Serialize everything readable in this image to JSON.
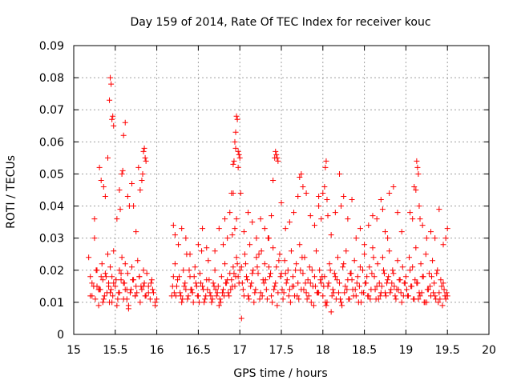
{
  "chart_data": {
    "type": "scatter",
    "title": "Day 159 of 2014, Rate Of TEC Index for receiver kouc",
    "xlabel": "GPS time / hours",
    "ylabel": "ROTI / TECUs",
    "xlim": [
      15,
      20
    ],
    "ylim": [
      0,
      0.09
    ],
    "x_ticks": [
      15,
      15.5,
      16,
      16.5,
      17,
      17.5,
      18,
      18.5,
      19,
      19.5,
      20
    ],
    "x_tick_labels": [
      "15",
      "15.5",
      "16",
      "16.5",
      "17",
      "17.5",
      "18",
      "18.5",
      "19",
      "19.5",
      "20"
    ],
    "y_ticks": [
      0,
      0.01,
      0.02,
      0.03,
      0.04,
      0.05,
      0.06,
      0.07,
      0.08,
      0.09
    ],
    "y_tick_labels": [
      "0",
      "0.01",
      "0.02",
      "0.03",
      "0.04",
      "0.05",
      "0.06",
      "0.07",
      "0.08",
      "0.09"
    ],
    "grid": true,
    "marker": "+",
    "marker_color": "#ff0000",
    "series": [
      {
        "name": "ROTI",
        "x": [
          15.18,
          15.2,
          15.22,
          15.25,
          15.27,
          15.28,
          15.3,
          15.32,
          15.34,
          15.35,
          15.36,
          15.38,
          15.4,
          15.41,
          15.42,
          15.43,
          15.44,
          15.45,
          15.46,
          15.47,
          15.48,
          15.5,
          15.52,
          15.54,
          15.55,
          15.57,
          15.58,
          15.6,
          15.61,
          15.62,
          15.64,
          15.65,
          15.66,
          15.68,
          15.7,
          15.72,
          15.74,
          15.75,
          15.77,
          15.79,
          15.8,
          15.82,
          15.84,
          15.85,
          15.86,
          15.88,
          15.9,
          15.92,
          15.94,
          15.96,
          15.98,
          16.0,
          15.2,
          15.24,
          15.28,
          15.31,
          15.35,
          15.39,
          15.44,
          15.48,
          15.53,
          15.57,
          15.62,
          15.66,
          15.71,
          15.76,
          15.81,
          15.87,
          15.93,
          15.98,
          15.22,
          15.26,
          15.3,
          15.33,
          15.37,
          15.42,
          15.46,
          15.51,
          15.55,
          15.6,
          15.64,
          15.69,
          15.74,
          15.79,
          15.84,
          15.9,
          15.95,
          15.25,
          15.31,
          15.33,
          15.36,
          15.38,
          15.41,
          15.43,
          15.44,
          15.45,
          15.46,
          15.47,
          15.48,
          15.52,
          15.55,
          15.56,
          15.58,
          15.59,
          15.6,
          15.62,
          15.65,
          15.67,
          15.7,
          15.72,
          15.75,
          15.78,
          15.8,
          15.82,
          15.83,
          15.84,
          15.85,
          15.86,
          15.87,
          16.18,
          16.2,
          16.22,
          16.24,
          16.26,
          16.28,
          16.3,
          16.32,
          16.34,
          16.36,
          16.38,
          16.4,
          16.42,
          16.44,
          16.46,
          16.48,
          16.5,
          16.52,
          16.54,
          16.56,
          16.58,
          16.6,
          16.62,
          16.64,
          16.66,
          16.68,
          16.7,
          16.72,
          16.74,
          16.76,
          16.78,
          16.8,
          16.82,
          16.84,
          16.86,
          16.88,
          16.9,
          16.92,
          16.94,
          16.96,
          16.98,
          17.0,
          16.19,
          16.23,
          16.27,
          16.31,
          16.35,
          16.39,
          16.43,
          16.47,
          16.51,
          16.55,
          16.59,
          16.63,
          16.67,
          16.71,
          16.75,
          16.79,
          16.83,
          16.87,
          16.91,
          16.95,
          16.99,
          16.21,
          16.25,
          16.29,
          16.33,
          16.37,
          16.41,
          16.45,
          16.49,
          16.53,
          16.57,
          16.61,
          16.65,
          16.69,
          16.73,
          16.77,
          16.81,
          16.85,
          16.89,
          16.93,
          16.97,
          16.2,
          16.22,
          16.3,
          16.35,
          16.4,
          16.5,
          16.55,
          16.6,
          16.7,
          16.75,
          16.8,
          16.82,
          16.85,
          16.88,
          16.9,
          16.92,
          16.93,
          16.94,
          16.95,
          16.96,
          16.97,
          16.98,
          16.99,
          17.0,
          17.01,
          17.02,
          16.92,
          16.95,
          16.98,
          16.96,
          16.94,
          16.91,
          17.02,
          17.04,
          17.06,
          17.08,
          17.1,
          17.12,
          17.14,
          17.16,
          17.18,
          17.2,
          17.22,
          17.24,
          17.26,
          17.28,
          17.3,
          17.32,
          17.34,
          17.36,
          17.38,
          17.4,
          17.42,
          17.44,
          17.46,
          17.48,
          17.5,
          17.52,
          17.54,
          17.56,
          17.58,
          17.6,
          17.62,
          17.64,
          17.66,
          17.68,
          17.7,
          17.72,
          17.74,
          17.76,
          17.78,
          17.8,
          17.82,
          17.84,
          17.86,
          17.88,
          17.9,
          17.92,
          17.94,
          17.96,
          17.98,
          17.03,
          17.07,
          17.11,
          17.15,
          17.19,
          17.23,
          17.27,
          17.31,
          17.35,
          17.39,
          17.43,
          17.47,
          17.51,
          17.55,
          17.59,
          17.63,
          17.67,
          17.71,
          17.75,
          17.79,
          17.83,
          17.87,
          17.91,
          17.95,
          17.99,
          17.05,
          17.09,
          17.13,
          17.17,
          17.21,
          17.25,
          17.29,
          17.33,
          17.37,
          17.41,
          17.45,
          17.49,
          17.53,
          17.57,
          17.61,
          17.65,
          17.69,
          17.73,
          17.77,
          17.81,
          17.85,
          17.89,
          17.93,
          17.97,
          17.05,
          17.1,
          17.15,
          17.2,
          17.25,
          17.3,
          17.35,
          17.38,
          17.4,
          17.42,
          17.43,
          17.44,
          17.45,
          17.46,
          17.5,
          17.55,
          17.6,
          17.65,
          17.7,
          17.72,
          17.74,
          17.76,
          17.8,
          17.85,
          17.9,
          17.95,
          18.0,
          18.02,
          18.04,
          18.06,
          18.08,
          18.1,
          18.12,
          18.14,
          18.16,
          18.18,
          18.2,
          18.22,
          18.24,
          18.26,
          18.28,
          18.3,
          18.32,
          18.34,
          18.36,
          18.38,
          18.4,
          18.42,
          18.44,
          18.46,
          18.48,
          18.5,
          18.52,
          18.54,
          18.56,
          18.58,
          18.6,
          18.62,
          18.64,
          18.66,
          18.68,
          18.7,
          18.72,
          18.74,
          18.76,
          18.78,
          18.8,
          18.82,
          18.84,
          18.86,
          18.88,
          18.9,
          18.92,
          18.94,
          18.96,
          18.98,
          18.01,
          18.05,
          18.09,
          18.13,
          18.17,
          18.21,
          18.25,
          18.29,
          18.33,
          18.37,
          18.41,
          18.45,
          18.49,
          18.53,
          18.57,
          18.61,
          18.65,
          18.69,
          18.73,
          18.77,
          18.81,
          18.85,
          18.89,
          18.93,
          18.97,
          18.03,
          18.07,
          18.11,
          18.15,
          18.19,
          18.23,
          18.27,
          18.31,
          18.35,
          18.39,
          18.43,
          18.47,
          18.51,
          18.55,
          18.59,
          18.63,
          18.67,
          18.71,
          18.75,
          18.79,
          18.83,
          18.87,
          18.91,
          18.95,
          18.99,
          17.95,
          17.98,
          18.0,
          18.02,
          18.03,
          18.04,
          18.05,
          18.06,
          18.1,
          18.15,
          18.2,
          18.22,
          18.25,
          18.3,
          18.35,
          18.4,
          18.45,
          18.5,
          18.55,
          18.6,
          18.65,
          18.7,
          18.72,
          18.75,
          18.78,
          18.8,
          18.85,
          18.9,
          18.95,
          19.0,
          19.02,
          19.04,
          19.06,
          19.08,
          19.1,
          19.12,
          19.14,
          19.16,
          19.18,
          19.2,
          19.22,
          19.24,
          19.26,
          19.28,
          19.3,
          19.32,
          19.34,
          19.36,
          19.38,
          19.4,
          19.42,
          19.44,
          19.46,
          19.48,
          19.5,
          19.01,
          19.05,
          19.09,
          19.13,
          19.17,
          19.21,
          19.25,
          19.29,
          19.33,
          19.37,
          19.41,
          19.45,
          19.49,
          19.03,
          19.07,
          19.11,
          19.15,
          19.19,
          19.23,
          19.27,
          19.31,
          19.35,
          19.39,
          19.43,
          19.47,
          19.05,
          19.08,
          19.1,
          19.12,
          19.13,
          19.14,
          19.15,
          19.16,
          19.17,
          19.2,
          19.25,
          19.3,
          19.35,
          19.4,
          19.45,
          19.48,
          19.5
        ],
        "y": [
          0.024,
          0.018,
          0.012,
          0.036,
          0.02,
          0.015,
          0.009,
          0.014,
          0.022,
          0.017,
          0.011,
          0.019,
          0.013,
          0.025,
          0.016,
          0.01,
          0.021,
          0.014,
          0.018,
          0.012,
          0.026,
          0.015,
          0.009,
          0.013,
          0.02,
          0.017,
          0.024,
          0.011,
          0.016,
          0.022,
          0.014,
          0.019,
          0.008,
          0.013,
          0.021,
          0.017,
          0.012,
          0.015,
          0.023,
          0.018,
          0.01,
          0.014,
          0.02,
          0.016,
          0.012,
          0.019,
          0.015,
          0.011,
          0.017,
          0.013,
          0.009,
          0.011,
          0.012,
          0.015,
          0.02,
          0.014,
          0.01,
          0.018,
          0.013,
          0.016,
          0.011,
          0.019,
          0.014,
          0.009,
          0.017,
          0.013,
          0.015,
          0.012,
          0.016,
          0.01,
          0.016,
          0.011,
          0.014,
          0.018,
          0.012,
          0.015,
          0.01,
          0.017,
          0.013,
          0.016,
          0.011,
          0.014,
          0.012,
          0.018,
          0.015,
          0.013,
          0.014,
          0.03,
          0.052,
          0.048,
          0.046,
          0.043,
          0.055,
          0.073,
          0.08,
          0.078,
          0.067,
          0.068,
          0.065,
          0.036,
          0.045,
          0.039,
          0.05,
          0.051,
          0.062,
          0.066,
          0.043,
          0.04,
          0.047,
          0.04,
          0.032,
          0.052,
          0.045,
          0.048,
          0.05,
          0.057,
          0.058,
          0.055,
          0.054,
          0.012,
          0.018,
          0.022,
          0.015,
          0.028,
          0.013,
          0.01,
          0.02,
          0.016,
          0.025,
          0.012,
          0.018,
          0.014,
          0.01,
          0.021,
          0.015,
          0.012,
          0.019,
          0.026,
          0.014,
          0.011,
          0.017,
          0.023,
          0.013,
          0.01,
          0.016,
          0.02,
          0.012,
          0.015,
          0.011,
          0.018,
          0.014,
          0.022,
          0.016,
          0.013,
          0.019,
          0.017,
          0.021,
          0.015,
          0.024,
          0.018,
          0.02,
          0.015,
          0.012,
          0.018,
          0.011,
          0.014,
          0.02,
          0.013,
          0.016,
          0.01,
          0.015,
          0.012,
          0.017,
          0.011,
          0.014,
          0.009,
          0.013,
          0.016,
          0.012,
          0.015,
          0.018,
          0.016,
          0.013,
          0.017,
          0.012,
          0.015,
          0.011,
          0.014,
          0.018,
          0.012,
          0.016,
          0.01,
          0.014,
          0.012,
          0.015,
          0.013,
          0.01,
          0.012,
          0.017,
          0.014,
          0.019,
          0.022,
          0.034,
          0.031,
          0.033,
          0.03,
          0.025,
          0.028,
          0.033,
          0.027,
          0.026,
          0.033,
          0.028,
          0.036,
          0.03,
          0.038,
          0.044,
          0.053,
          0.054,
          0.06,
          0.063,
          0.068,
          0.067,
          0.057,
          0.056,
          0.055,
          0.044,
          0.005,
          0.044,
          0.058,
          0.052,
          0.036,
          0.033,
          0.031,
          0.021,
          0.014,
          0.025,
          0.018,
          0.012,
          0.028,
          0.016,
          0.02,
          0.013,
          0.024,
          0.019,
          0.011,
          0.026,
          0.017,
          0.022,
          0.014,
          0.03,
          0.018,
          0.012,
          0.027,
          0.015,
          0.021,
          0.013,
          0.025,
          0.019,
          0.011,
          0.023,
          0.016,
          0.02,
          0.014,
          0.026,
          0.018,
          0.012,
          0.022,
          0.016,
          0.028,
          0.014,
          0.019,
          0.024,
          0.013,
          0.017,
          0.021,
          0.01,
          0.015,
          0.018,
          0.026,
          0.013,
          0.02,
          0.016,
          0.016,
          0.022,
          0.011,
          0.019,
          0.014,
          0.025,
          0.012,
          0.017,
          0.021,
          0.01,
          0.016,
          0.023,
          0.014,
          0.019,
          0.012,
          0.015,
          0.02,
          0.011,
          0.024,
          0.016,
          0.012,
          0.02,
          0.015,
          0.013,
          0.018,
          0.012,
          0.017,
          0.015,
          0.01,
          0.021,
          0.013,
          0.016,
          0.011,
          0.019,
          0.014,
          0.009,
          0.018,
          0.013,
          0.017,
          0.01,
          0.015,
          0.012,
          0.02,
          0.014,
          0.011,
          0.016,
          0.009,
          0.013,
          0.017,
          0.032,
          0.038,
          0.035,
          0.03,
          0.036,
          0.033,
          0.03,
          0.037,
          0.048,
          0.055,
          0.057,
          0.056,
          0.055,
          0.054,
          0.041,
          0.033,
          0.035,
          0.038,
          0.043,
          0.049,
          0.05,
          0.046,
          0.044,
          0.037,
          0.034,
          0.04,
          0.012,
          0.018,
          0.009,
          0.015,
          0.022,
          0.007,
          0.014,
          0.019,
          0.011,
          0.024,
          0.016,
          0.01,
          0.021,
          0.013,
          0.026,
          0.017,
          0.011,
          0.019,
          0.014,
          0.023,
          0.012,
          0.018,
          0.015,
          0.01,
          0.02,
          0.025,
          0.016,
          0.012,
          0.021,
          0.014,
          0.027,
          0.018,
          0.011,
          0.022,
          0.016,
          0.013,
          0.024,
          0.019,
          0.012,
          0.017,
          0.026,
          0.014,
          0.02,
          0.015,
          0.011,
          0.023,
          0.017,
          0.013,
          0.021,
          0.016,
          0.015,
          0.01,
          0.02,
          0.013,
          0.017,
          0.011,
          0.022,
          0.014,
          0.019,
          0.012,
          0.016,
          0.021,
          0.013,
          0.018,
          0.011,
          0.024,
          0.015,
          0.012,
          0.02,
          0.016,
          0.013,
          0.019,
          0.014,
          0.017,
          0.012,
          0.01,
          0.016,
          0.012,
          0.018,
          0.013,
          0.009,
          0.015,
          0.011,
          0.017,
          0.014,
          0.01,
          0.013,
          0.016,
          0.012,
          0.019,
          0.014,
          0.011,
          0.015,
          0.013,
          0.018,
          0.016,
          0.012,
          0.014,
          0.01,
          0.016,
          0.043,
          0.036,
          0.044,
          0.046,
          0.052,
          0.054,
          0.042,
          0.037,
          0.031,
          0.038,
          0.05,
          0.04,
          0.043,
          0.036,
          0.042,
          0.03,
          0.033,
          0.028,
          0.034,
          0.037,
          0.036,
          0.042,
          0.039,
          0.032,
          0.03,
          0.044,
          0.046,
          0.038,
          0.032,
          0.018,
          0.012,
          0.024,
          0.015,
          0.021,
          0.011,
          0.027,
          0.016,
          0.013,
          0.022,
          0.018,
          0.01,
          0.025,
          0.014,
          0.019,
          0.012,
          0.023,
          0.016,
          0.011,
          0.02,
          0.013,
          0.017,
          0.009,
          0.014,
          0.011,
          0.012,
          0.014,
          0.02,
          0.011,
          0.016,
          0.012,
          0.018,
          0.01,
          0.015,
          0.013,
          0.019,
          0.011,
          0.016,
          0.013,
          0.012,
          0.015,
          0.017,
          0.011,
          0.013,
          0.01,
          0.014,
          0.018,
          0.012,
          0.01,
          0.015,
          0.012,
          0.038,
          0.036,
          0.046,
          0.045,
          0.054,
          0.052,
          0.05,
          0.04,
          0.036,
          0.034,
          0.03,
          0.032,
          0.03,
          0.039,
          0.028,
          0.03,
          0.033
        ]
      }
    ]
  }
}
